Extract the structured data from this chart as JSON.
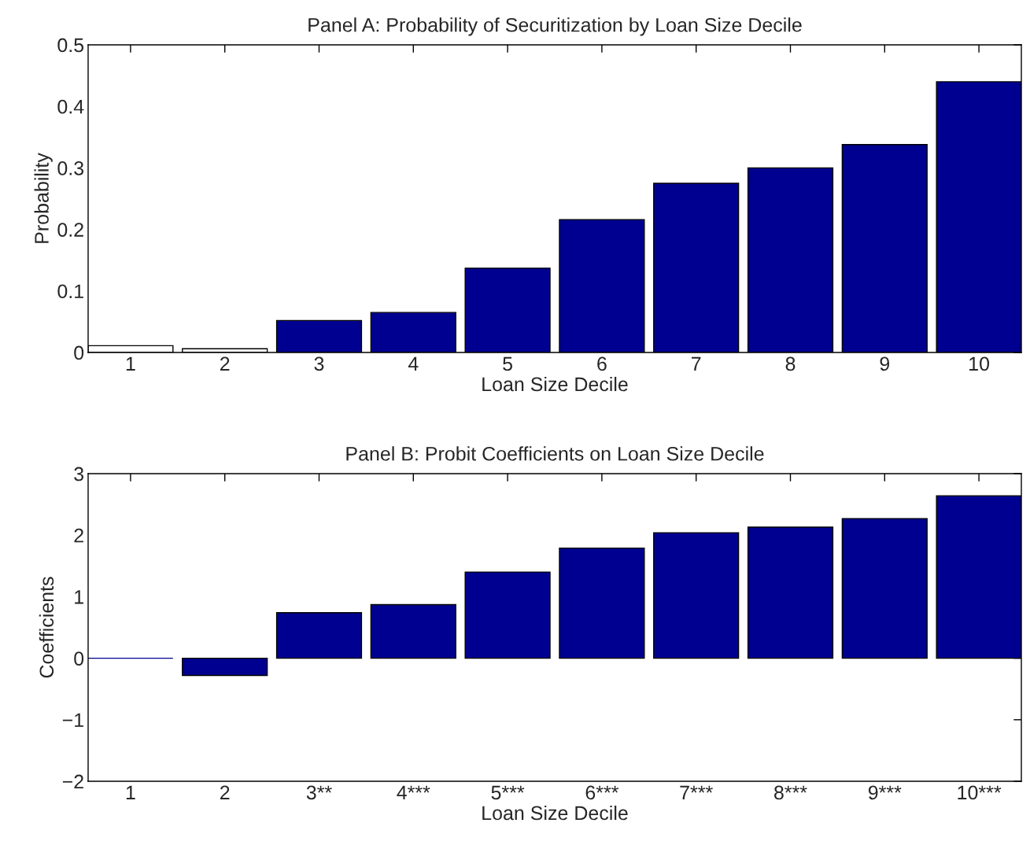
{
  "chart_data": [
    {
      "type": "bar",
      "title": "Panel A: Probability of Securitization by Loan Size Decile",
      "xlabel": "Loan Size Decile",
      "ylabel": "Probability",
      "categories": [
        "1",
        "2",
        "3",
        "4",
        "5",
        "6",
        "7",
        "8",
        "9",
        "10"
      ],
      "values": [
        0.011,
        0.006,
        0.052,
        0.065,
        0.137,
        0.216,
        0.275,
        0.3,
        0.338,
        0.44
      ],
      "colors": [
        "#ffffff",
        "#ffffff",
        "#000090",
        "#000090",
        "#000090",
        "#000090",
        "#000090",
        "#000090",
        "#000090",
        "#000090"
      ],
      "ylim": [
        0,
        0.5
      ],
      "yticks": [
        0,
        0.1,
        0.2,
        0.3,
        0.4,
        0.5
      ],
      "grid": false,
      "legend": false
    },
    {
      "type": "bar",
      "title": "Panel B: Probit Coefficients on Loan Size Decile",
      "xlabel": "Loan Size Decile",
      "ylabel": "Coefficients",
      "categories": [
        "1",
        "2",
        "3**",
        "4***",
        "5***",
        "6***",
        "7***",
        "8***",
        "9***",
        "10***"
      ],
      "values": [
        0,
        -0.28,
        0.74,
        0.87,
        1.4,
        1.79,
        2.04,
        2.13,
        2.27,
        2.64
      ],
      "color": "#000090",
      "ylim": [
        -2,
        3
      ],
      "yticks": [
        {
          "value": -2,
          "label": "−2"
        },
        {
          "value": -1,
          "label": "−1"
        },
        0,
        1,
        2,
        3
      ],
      "grid": false,
      "legend": false
    }
  ]
}
